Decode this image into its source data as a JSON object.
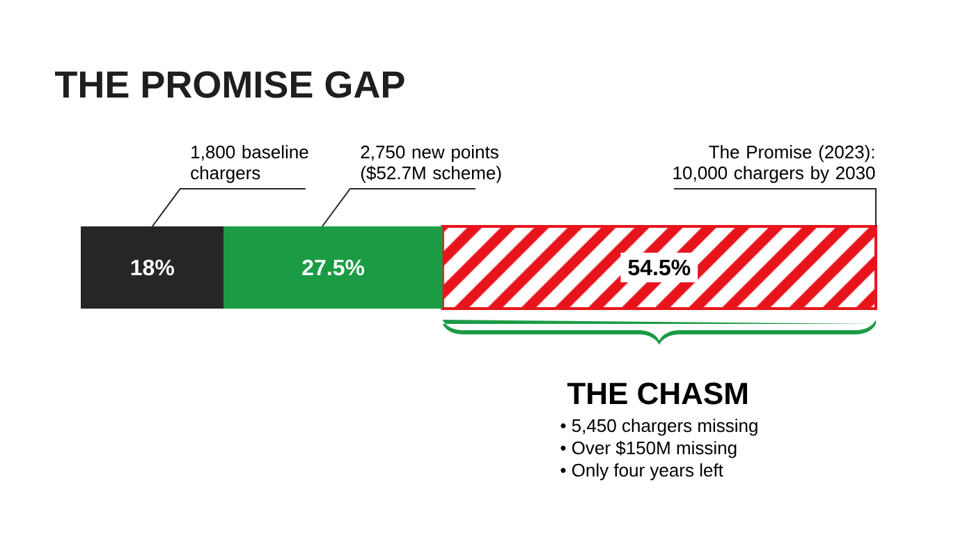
{
  "chart_data": {
    "type": "bar",
    "orientation": "horizontal",
    "stacked": true,
    "title": "THE PROMISE GAP",
    "categories": [
      null
    ],
    "series": [
      {
        "color": "#262626",
        "values": [
          18
        ],
        "value_labels": [
          "18%"
        ]
      },
      {
        "color": "#1c9b45",
        "values": [
          27.5
        ],
        "value_labels": [
          "27.5%"
        ]
      },
      {
        "color": "#e8141c",
        "values": [
          54.5
        ],
        "value_labels": [
          "54.5%"
        ]
      }
    ],
    "annotations": [
      "1,800 baseline chargers",
      "2,750 new points ($52.7M scheme)",
      "The Promise (2023): 10,000 chargers by 2030",
      "THE CHASM",
      "• 5,450 chargers missing",
      "• Over $150M missing",
      "• Only four years left"
    ]
  }
}
